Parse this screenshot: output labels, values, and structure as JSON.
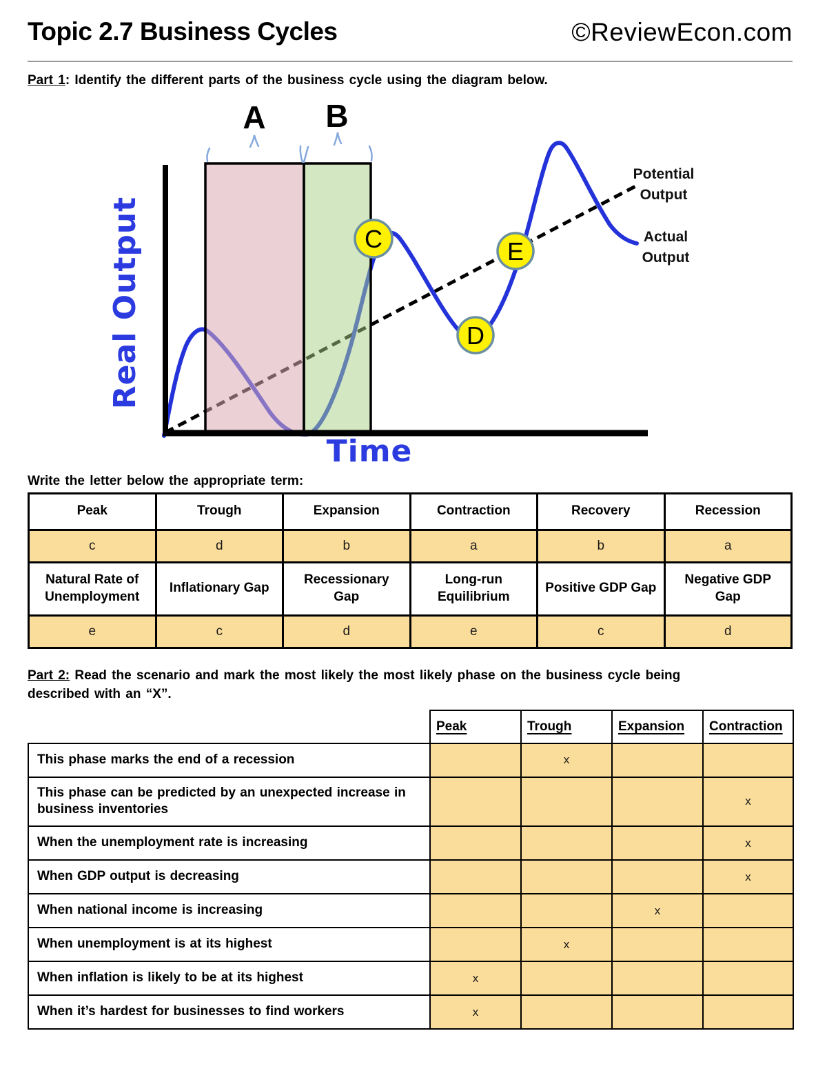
{
  "header": {
    "title": "Topic 2.7 Business Cycles",
    "brand": "©ReviewEcon.com"
  },
  "part1": {
    "label": "Part 1",
    "text": ": Identify the different parts of the business cycle using the diagram below."
  },
  "diagram": {
    "y_axis_label": "Real Output",
    "x_axis_label": "Time",
    "potential_output_line1": "Potential",
    "potential_output_line2": "Output",
    "actual_output_line1": "Actual",
    "actual_output_line2": "Output",
    "region_a_label": "A",
    "region_b_label": "B",
    "point_c_label": "C",
    "point_d_label": "D",
    "point_e_label": "E",
    "colors": {
      "recession_region_pink": "#EDD4DA",
      "recovery_region_green": "#D3E8C1",
      "actual_curve_blue": "#2333D9",
      "axis_label_blue": "#2B3BE0",
      "marker_fill_yellow": "#FFF104",
      "marker_border": "#6A8FA0",
      "brace_blue": "#85A8DC"
    }
  },
  "table1": {
    "prompt": "Write the letter below the appropriate term:",
    "row1_terms": [
      "Peak",
      "Trough",
      "Expansion",
      "Contraction",
      "Recovery",
      "Recession"
    ],
    "row1_answers": [
      "c",
      "d",
      "b",
      "a",
      "b",
      "a"
    ],
    "row2_terms": [
      "Natural Rate of Unemployment",
      "Inflationary Gap",
      "Recessionary Gap",
      "Long-run Equilibrium",
      "Positive GDP Gap",
      "Negative GDP Gap"
    ],
    "row2_answers": [
      "e",
      "c",
      "d",
      "e",
      "c",
      "d"
    ],
    "answer_cell_color": "#FBDD9B"
  },
  "part2": {
    "label": "Part 2:",
    "text_line1": " Read the scenario and mark the most likely the most likely phase on the business cycle being",
    "text_line2": "described with an “X”."
  },
  "table2": {
    "columns": [
      "Peak",
      "Trough",
      "Expansion",
      "Contraction"
    ],
    "rows": [
      {
        "scenario": "This phase marks the end of a recession",
        "marks": [
          "",
          "x",
          "",
          ""
        ]
      },
      {
        "scenario": "This phase can be predicted by an unexpected increase in business inventories",
        "marks": [
          "",
          "",
          "",
          "x"
        ]
      },
      {
        "scenario": "When the unemployment rate is increasing",
        "marks": [
          "",
          "",
          "",
          "x"
        ]
      },
      {
        "scenario": "When GDP output is decreasing",
        "marks": [
          "",
          "",
          "",
          "x"
        ]
      },
      {
        "scenario": "When national income is increasing",
        "marks": [
          "",
          "",
          "x",
          ""
        ]
      },
      {
        "scenario": "When unemployment is at its highest",
        "marks": [
          "",
          "x",
          "",
          ""
        ]
      },
      {
        "scenario": "When inflation is likely to be at its highest",
        "marks": [
          "x",
          "",
          "",
          ""
        ]
      },
      {
        "scenario": "When it’s hardest for businesses to find workers",
        "marks": [
          "x",
          "",
          "",
          ""
        ]
      }
    ]
  }
}
